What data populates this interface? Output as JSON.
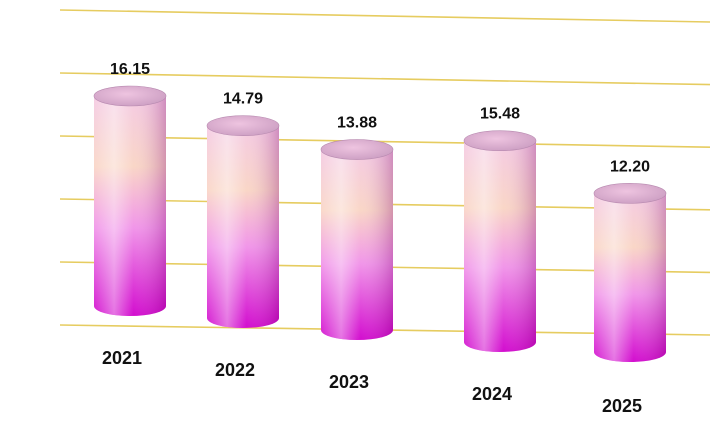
{
  "chart_data": {
    "type": "bar",
    "style": "3d-cylinder",
    "title": "",
    "xlabel": "",
    "ylabel": "",
    "categories": [
      "2021",
      "2022",
      "2023",
      "2024",
      "2025"
    ],
    "values": [
      16.15,
      14.79,
      13.88,
      15.48,
      12.2
    ],
    "value_labels": [
      "16.15",
      "14.79",
      "13.88",
      "15.48",
      "12.20"
    ],
    "ylim": [
      0,
      20
    ],
    "grid": true,
    "legend": "none",
    "colors": {
      "bar_top": "#f4c8e2",
      "bar_mid": "#f9d2c2",
      "bar_bottom": "#d800d2",
      "grid": "#e6cc60"
    }
  }
}
